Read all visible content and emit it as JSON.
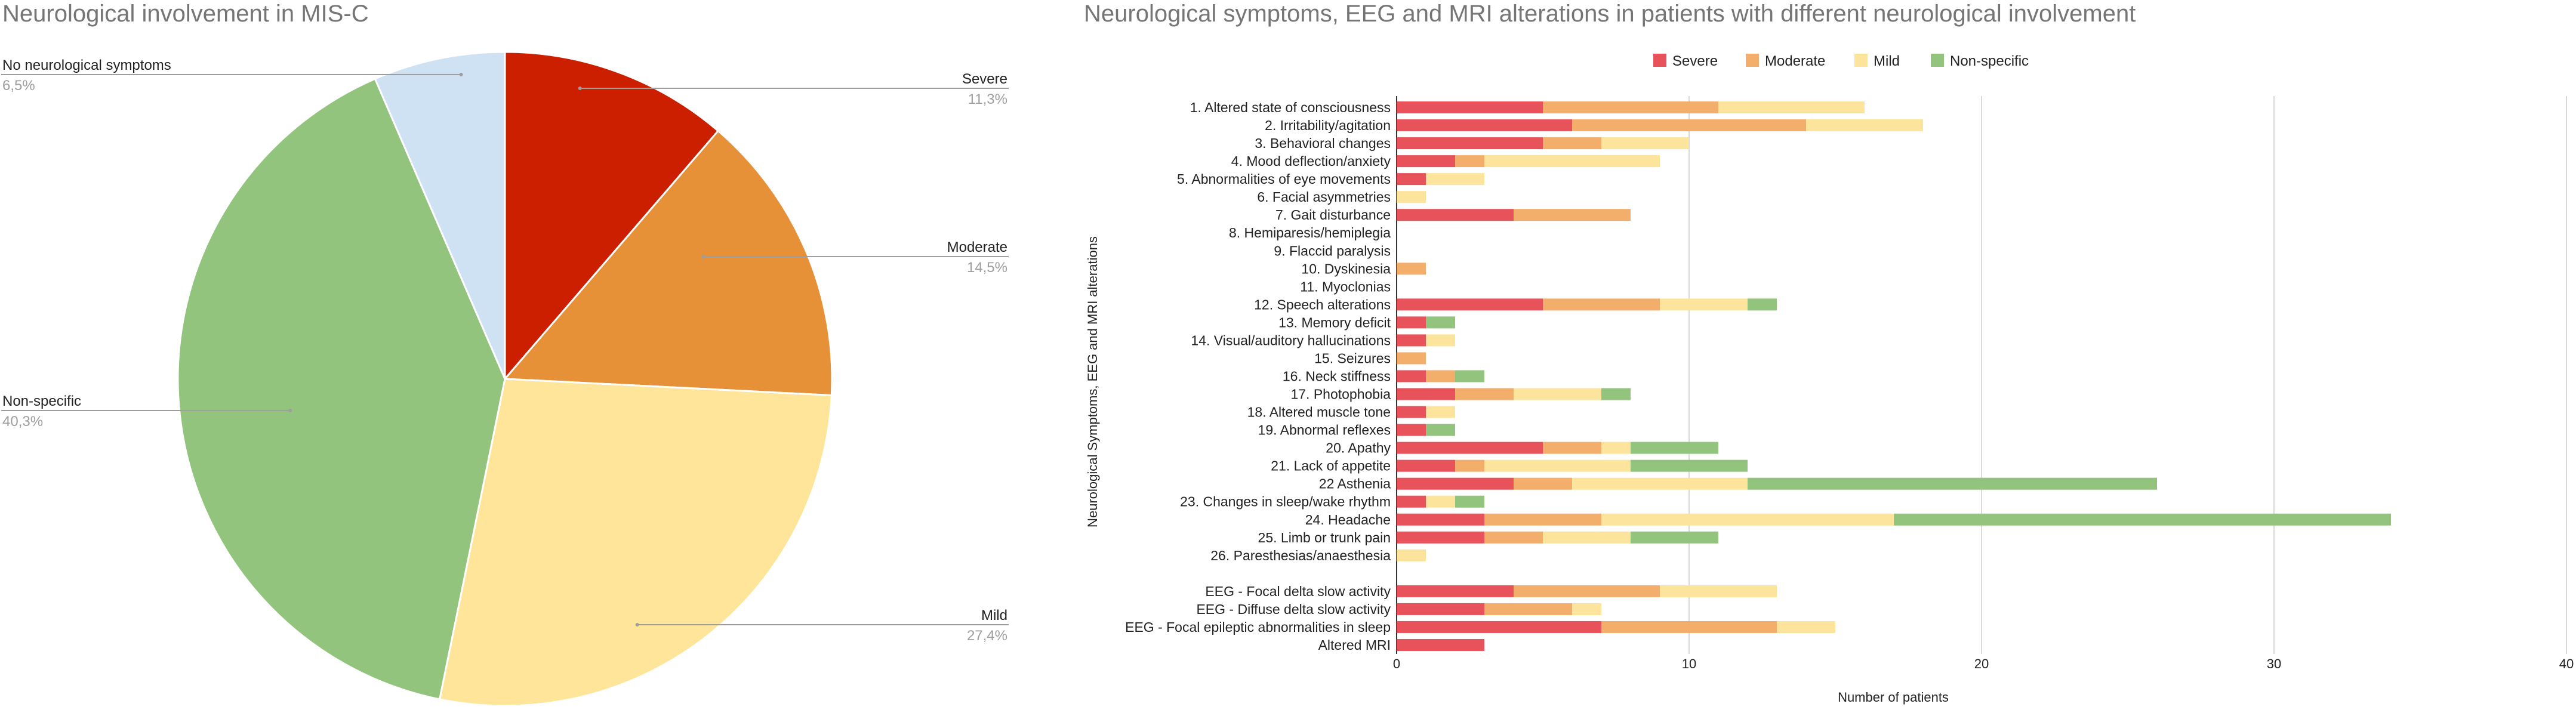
{
  "chart_data": [
    {
      "type": "pie",
      "title": "Neurological involvement in MIS-C",
      "slices": [
        {
          "label": "Severe",
          "pct_label": "11,3%",
          "value": 11.3,
          "color": "#cc1f00"
        },
        {
          "label": "Moderate",
          "pct_label": "14,5%",
          "value": 14.5,
          "color": "#e69138"
        },
        {
          "label": "Mild",
          "pct_label": "27,4%",
          "value": 27.4,
          "color": "#ffe599"
        },
        {
          "label": "Non-specific",
          "pct_label": "40,3%",
          "value": 40.3,
          "color": "#93c47d"
        },
        {
          "label": "No neurological symptoms",
          "pct_label": "6,5%",
          "value": 6.5,
          "color": "#cfe2f3"
        }
      ]
    },
    {
      "type": "bar",
      "orientation": "horizontal",
      "stacked": true,
      "title": "Neurological symptoms, EEG and MRI alterations in patients with different neurological involvement",
      "xlabel": "Number of patients",
      "ylabel": "Neurological Symptoms, EEG and MRI alterations",
      "xlim": [
        0,
        40
      ],
      "xticks": [
        0,
        10,
        20,
        30,
        40
      ],
      "grid": true,
      "legend_position": "top",
      "categories": [
        "1. Altered state of consciousness",
        "2. Irritability/agitation",
        "3. Behavioral changes",
        "4. Mood deflection/anxiety",
        "5. Abnormalities of eye movements",
        "6. Facial asymmetries",
        "7. Gait disturbance",
        "8. Hemiparesis/hemiplegia",
        "9. Flaccid paralysis",
        "10. Dyskinesia",
        "11. Myoclonias",
        "12. Speech alterations",
        "13. Memory deficit",
        "14. Visual/auditory hallucinations",
        "15. Seizures",
        "16. Neck stiffness",
        "17. Photophobia",
        "18. Altered muscle tone",
        "19. Abnormal reflexes",
        "20. Apathy",
        "21. Lack of appetite",
        "22 Asthenia",
        "23. Changes in sleep/wake rhythm",
        "24. Headache",
        "25. Limb or trunk pain",
        "26. Paresthesias/anaesthesia",
        "",
        "EEG - Focal delta slow activity",
        "EEG - Diffuse delta slow activity",
        "EEG - Focal epileptic abnormalities in sleep",
        "Altered MRI"
      ],
      "series": [
        {
          "name": "Severe",
          "color": "#e8525a",
          "values": [
            5,
            6,
            5,
            2,
            1,
            0,
            4,
            0,
            0,
            0,
            0,
            5,
            1,
            1,
            0,
            1,
            2,
            1,
            1,
            5,
            2,
            4,
            1,
            3,
            3,
            0,
            0,
            4,
            3,
            7,
            3
          ]
        },
        {
          "name": "Moderate",
          "color": "#f4ae6b",
          "values": [
            6,
            8,
            2,
            1,
            0,
            0,
            4,
            0,
            0,
            1,
            0,
            4,
            0,
            0,
            1,
            1,
            2,
            0,
            0,
            2,
            1,
            2,
            0,
            4,
            2,
            0,
            0,
            5,
            3,
            6,
            0
          ]
        },
        {
          "name": "Mild",
          "color": "#fde49c",
          "values": [
            5,
            4,
            3,
            6,
            2,
            1,
            0,
            0,
            0,
            0,
            0,
            3,
            0,
            1,
            0,
            0,
            3,
            1,
            0,
            1,
            5,
            6,
            1,
            10,
            3,
            1,
            0,
            4,
            1,
            2,
            0
          ]
        },
        {
          "name": "Non-specific",
          "color": "#93c47d",
          "values": [
            0,
            0,
            0,
            0,
            0,
            0,
            0,
            0,
            0,
            0,
            0,
            1,
            1,
            0,
            0,
            1,
            1,
            0,
            1,
            3,
            4,
            14,
            1,
            17,
            3,
            0,
            0,
            0,
            0,
            0,
            0
          ]
        }
      ]
    }
  ]
}
